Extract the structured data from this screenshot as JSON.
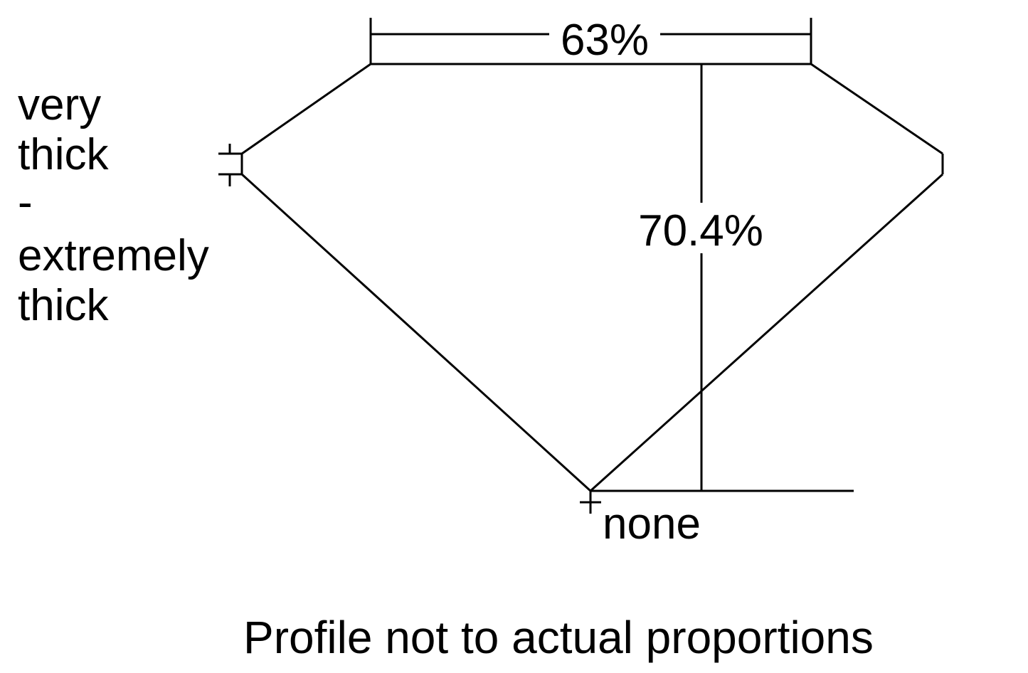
{
  "diagram": {
    "table_percent": "63%",
    "depth_percent": "70.4%",
    "girdle_label_lines": [
      "very",
      "thick",
      "-",
      "extremely",
      "thick"
    ],
    "culet_label": "none",
    "caption": "Profile not to actual proportions",
    "line_color": "#000000",
    "background_color": "#ffffff"
  }
}
